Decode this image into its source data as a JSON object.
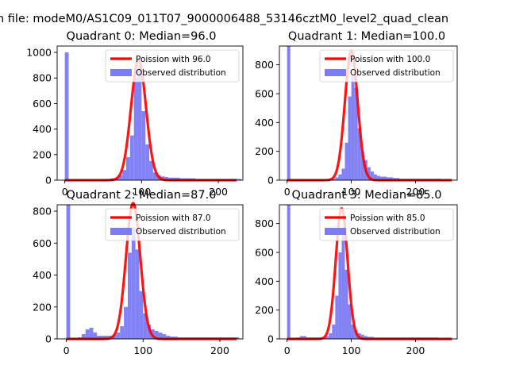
{
  "figure": {
    "suptitle": "n file: modeM0/AS1C09_011T07_9000006488_53146cztM0_level2_quad_clean"
  },
  "colors": {
    "hist": "#7b7bf5",
    "poisson": "#ff0000",
    "text": "#000000"
  },
  "chart_data": [
    {
      "type": "bar",
      "title": "Quadrant 0: Median=96.0",
      "median": 96,
      "xlim": [
        -10,
        232
      ],
      "ylim": [
        0,
        1050
      ],
      "xticks": [
        0,
        100,
        200
      ],
      "yticks": [
        0,
        200,
        400,
        600,
        800,
        1000
      ],
      "bin_width": 5,
      "hist_bins": [
        [
          0,
          1000
        ],
        [
          5,
          5
        ],
        [
          10,
          5
        ],
        [
          15,
          5
        ],
        [
          20,
          5
        ],
        [
          25,
          5
        ],
        [
          30,
          5
        ],
        [
          35,
          5
        ],
        [
          40,
          5
        ],
        [
          45,
          5
        ],
        [
          50,
          5
        ],
        [
          55,
          10
        ],
        [
          60,
          15
        ],
        [
          65,
          20
        ],
        [
          70,
          40
        ],
        [
          75,
          80
        ],
        [
          80,
          180
        ],
        [
          85,
          350
        ],
        [
          90,
          800
        ],
        [
          95,
          900
        ],
        [
          100,
          540
        ],
        [
          105,
          280
        ],
        [
          110,
          150
        ],
        [
          115,
          60
        ],
        [
          120,
          40
        ],
        [
          125,
          30
        ],
        [
          130,
          25
        ],
        [
          135,
          20
        ],
        [
          140,
          20
        ],
        [
          145,
          20
        ],
        [
          150,
          15
        ],
        [
          155,
          15
        ],
        [
          160,
          15
        ],
        [
          165,
          15
        ],
        [
          170,
          10
        ],
        [
          175,
          10
        ],
        [
          180,
          10
        ],
        [
          185,
          10
        ],
        [
          190,
          10
        ],
        [
          195,
          10
        ],
        [
          200,
          10
        ],
        [
          205,
          10
        ],
        [
          210,
          10
        ],
        [
          215,
          10
        ],
        [
          220,
          10
        ],
        [
          225,
          10
        ]
      ],
      "poisson_peak": 940,
      "poisson_sigma": 9.8,
      "legend": {
        "poisson": "Poission with 96.0",
        "observed": "Observed distribution"
      }
    },
    {
      "type": "bar",
      "title": "Quadrant 1: Median=100.0",
      "median": 100,
      "xlim": [
        -12,
        265
      ],
      "ylim": [
        0,
        930
      ],
      "xticks": [
        0,
        100,
        200
      ],
      "yticks": [
        0,
        200,
        400,
        600,
        800
      ],
      "bin_width": 5,
      "hist_bins": [
        [
          0,
          930
        ],
        [
          5,
          5
        ],
        [
          10,
          5
        ],
        [
          15,
          5
        ],
        [
          20,
          5
        ],
        [
          25,
          5
        ],
        [
          30,
          5
        ],
        [
          35,
          5
        ],
        [
          40,
          5
        ],
        [
          45,
          5
        ],
        [
          50,
          5
        ],
        [
          55,
          5
        ],
        [
          60,
          5
        ],
        [
          65,
          5
        ],
        [
          70,
          10
        ],
        [
          75,
          20
        ],
        [
          80,
          40
        ],
        [
          85,
          80
        ],
        [
          90,
          260
        ],
        [
          95,
          580
        ],
        [
          100,
          720
        ],
        [
          105,
          640
        ],
        [
          110,
          360
        ],
        [
          115,
          200
        ],
        [
          120,
          140
        ],
        [
          125,
          90
        ],
        [
          130,
          60
        ],
        [
          135,
          40
        ],
        [
          140,
          30
        ],
        [
          145,
          25
        ],
        [
          150,
          25
        ],
        [
          155,
          20
        ],
        [
          160,
          20
        ],
        [
          165,
          15
        ],
        [
          170,
          15
        ],
        [
          175,
          10
        ],
        [
          180,
          10
        ],
        [
          185,
          10
        ],
        [
          190,
          10
        ],
        [
          195,
          10
        ],
        [
          200,
          10
        ],
        [
          205,
          10
        ],
        [
          210,
          10
        ],
        [
          215,
          10
        ],
        [
          220,
          10
        ],
        [
          225,
          10
        ],
        [
          230,
          10
        ],
        [
          235,
          10
        ]
      ],
      "poisson_peak": 895,
      "poisson_sigma": 10,
      "legend": {
        "poisson": "Poission with 100.0",
        "observed": "Observed distribution"
      }
    },
    {
      "type": "bar",
      "title": "Quadrant 2: Median=87.0",
      "median": 87,
      "xlim": [
        -12,
        230
      ],
      "ylim": [
        0,
        840
      ],
      "xticks": [
        0,
        100,
        200
      ],
      "yticks": [
        0,
        200,
        400,
        600,
        800
      ],
      "bin_width": 5,
      "hist_bins": [
        [
          0,
          840
        ],
        [
          5,
          5
        ],
        [
          10,
          5
        ],
        [
          15,
          10
        ],
        [
          20,
          30
        ],
        [
          25,
          60
        ],
        [
          30,
          70
        ],
        [
          35,
          40
        ],
        [
          40,
          20
        ],
        [
          45,
          20
        ],
        [
          50,
          20
        ],
        [
          55,
          20
        ],
        [
          60,
          25
        ],
        [
          65,
          40
        ],
        [
          70,
          80
        ],
        [
          75,
          200
        ],
        [
          80,
          540
        ],
        [
          85,
          700
        ],
        [
          90,
          560
        ],
        [
          95,
          300
        ],
        [
          100,
          160
        ],
        [
          105,
          90
        ],
        [
          110,
          60
        ],
        [
          115,
          50
        ],
        [
          120,
          40
        ],
        [
          125,
          30
        ],
        [
          130,
          20
        ],
        [
          135,
          15
        ],
        [
          140,
          15
        ],
        [
          145,
          10
        ],
        [
          150,
          10
        ],
        [
          155,
          10
        ],
        [
          160,
          10
        ],
        [
          165,
          10
        ],
        [
          170,
          10
        ],
        [
          175,
          10
        ],
        [
          180,
          10
        ],
        [
          185,
          10
        ],
        [
          190,
          10
        ],
        [
          195,
          10
        ],
        [
          200,
          10
        ],
        [
          205,
          10
        ],
        [
          210,
          10
        ],
        [
          215,
          10
        ],
        [
          220,
          10
        ]
      ],
      "poisson_peak": 850,
      "poisson_sigma": 9.3,
      "legend": {
        "poisson": "Poission with 87.0",
        "observed": "Observed distribution"
      }
    },
    {
      "type": "bar",
      "title": "Quadrant 3: Median=85.0",
      "median": 85,
      "xlim": [
        -12,
        265
      ],
      "ylim": [
        0,
        930
      ],
      "xticks": [
        0,
        100,
        200
      ],
      "yticks": [
        0,
        200,
        400,
        600,
        800
      ],
      "bin_width": 5,
      "hist_bins": [
        [
          0,
          930
        ],
        [
          5,
          5
        ],
        [
          10,
          5
        ],
        [
          15,
          10
        ],
        [
          20,
          20
        ],
        [
          25,
          20
        ],
        [
          30,
          10
        ],
        [
          35,
          10
        ],
        [
          40,
          10
        ],
        [
          45,
          10
        ],
        [
          50,
          10
        ],
        [
          55,
          10
        ],
        [
          60,
          20
        ],
        [
          65,
          40
        ],
        [
          70,
          100
        ],
        [
          75,
          300
        ],
        [
          80,
          600
        ],
        [
          85,
          720
        ],
        [
          90,
          480
        ],
        [
          95,
          240
        ],
        [
          100,
          100
        ],
        [
          105,
          60
        ],
        [
          110,
          40
        ],
        [
          115,
          30
        ],
        [
          120,
          20
        ],
        [
          125,
          15
        ],
        [
          130,
          15
        ],
        [
          135,
          10
        ],
        [
          140,
          10
        ],
        [
          145,
          10
        ],
        [
          150,
          10
        ],
        [
          155,
          10
        ],
        [
          160,
          10
        ],
        [
          165,
          10
        ],
        [
          170,
          10
        ],
        [
          175,
          10
        ],
        [
          180,
          10
        ],
        [
          185,
          10
        ],
        [
          190,
          10
        ],
        [
          195,
          10
        ],
        [
          200,
          10
        ],
        [
          205,
          10
        ],
        [
          210,
          10
        ],
        [
          215,
          10
        ],
        [
          220,
          10
        ],
        [
          225,
          10
        ],
        [
          230,
          10
        ]
      ],
      "poisson_peak": 905,
      "poisson_sigma": 9.2,
      "legend": {
        "poisson": "Poission with 85.0",
        "observed": "Observed distribution"
      }
    }
  ]
}
